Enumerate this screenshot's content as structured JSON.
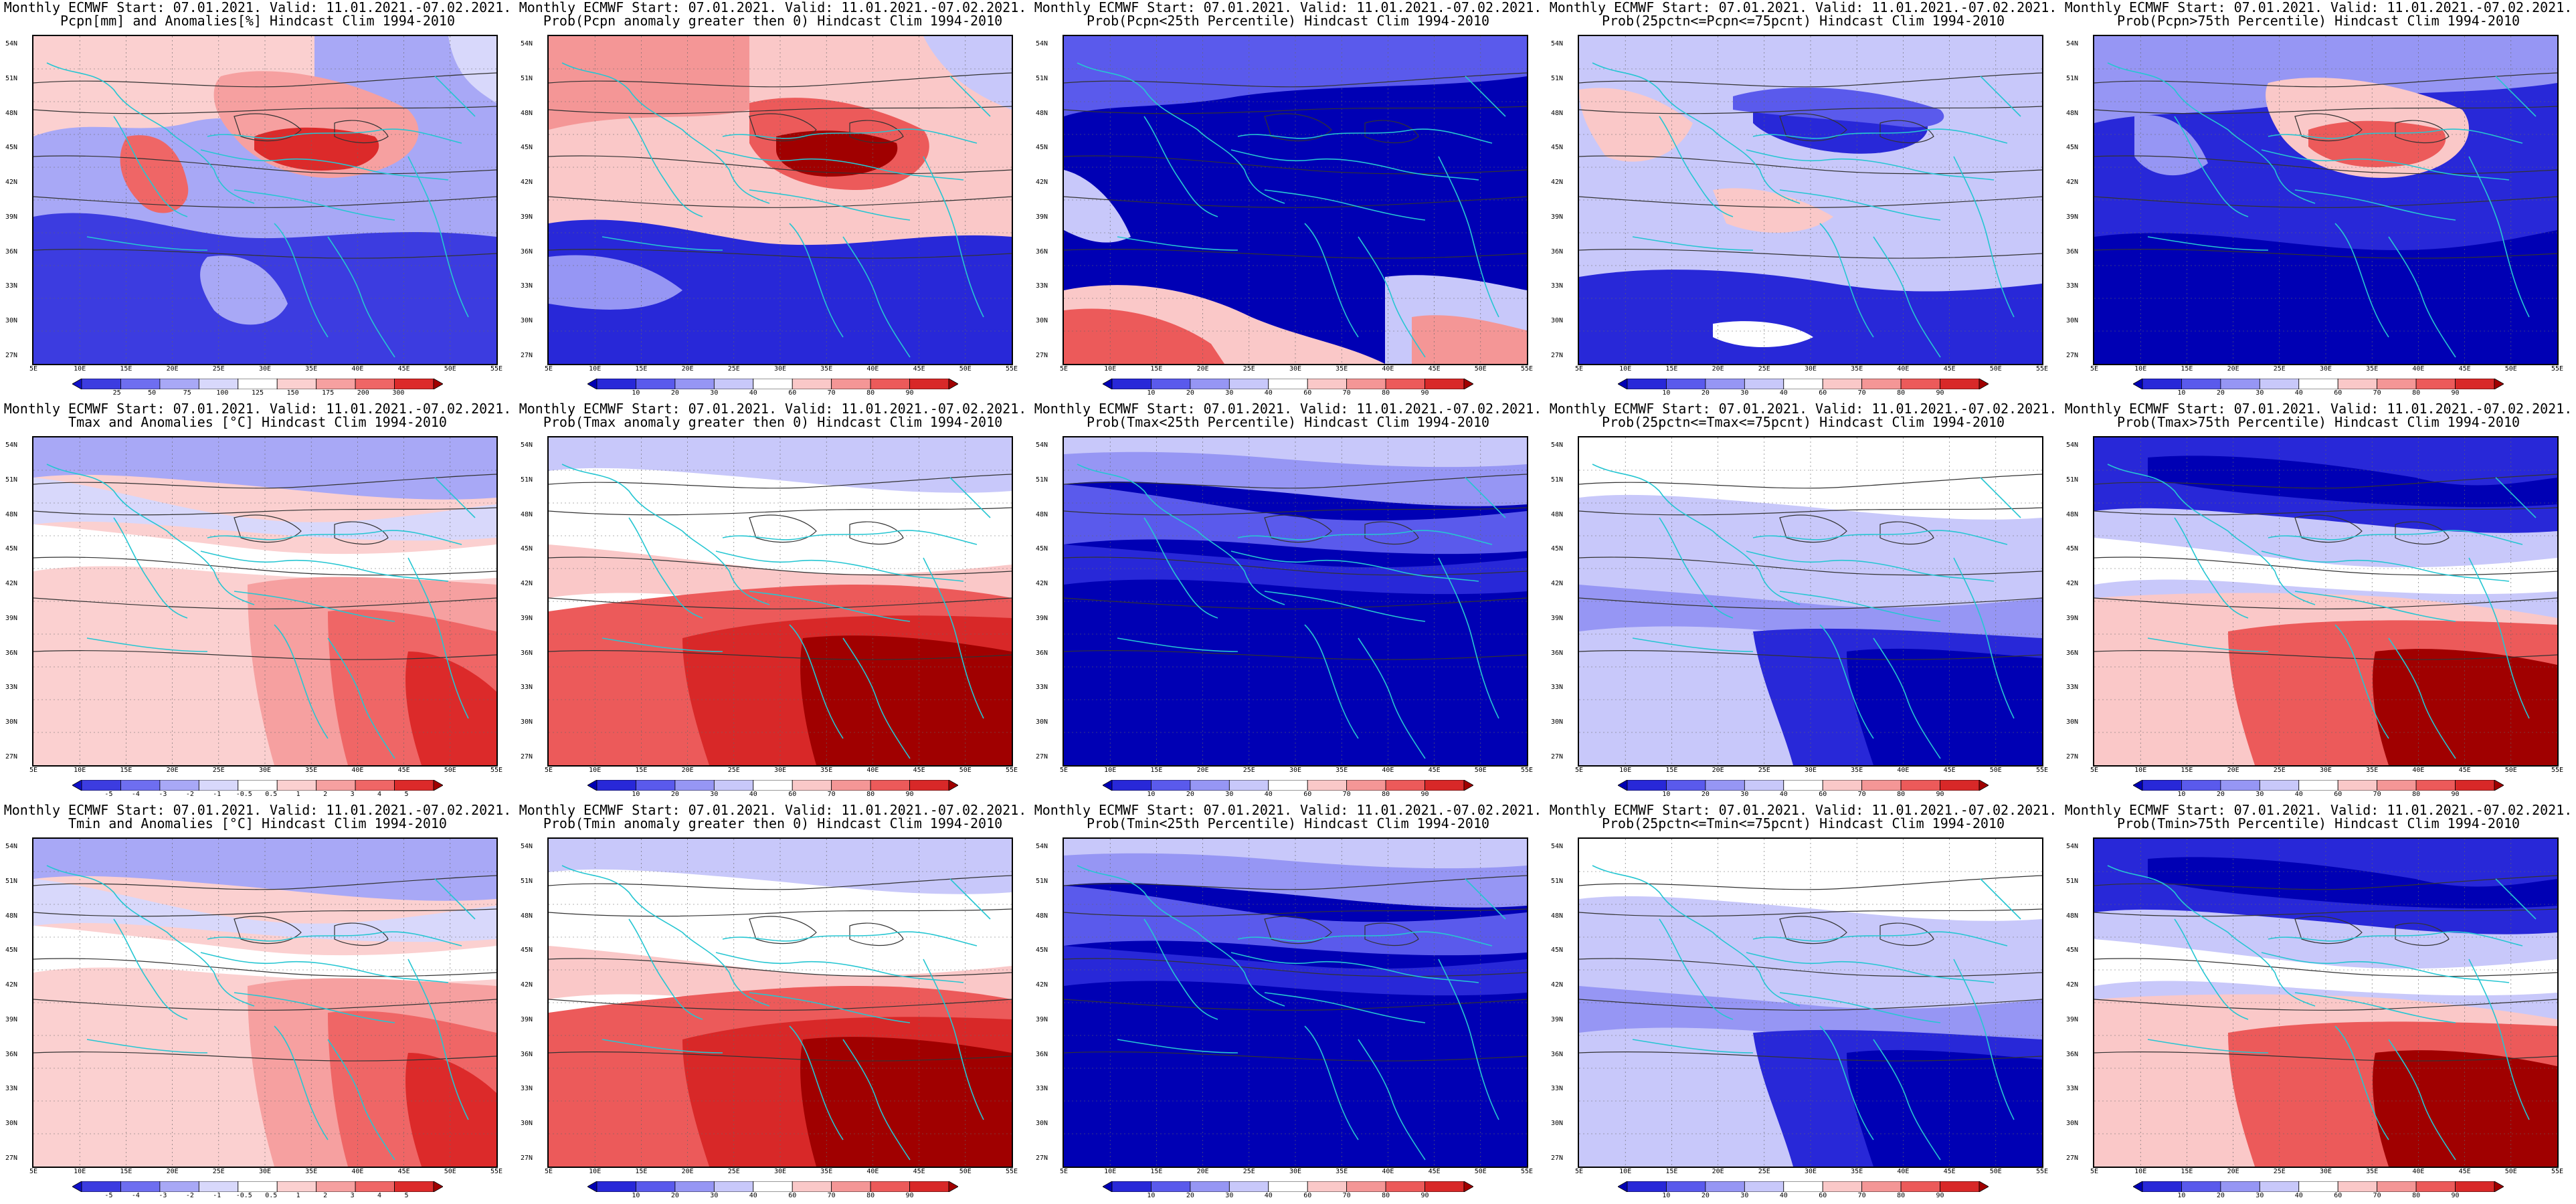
{
  "lat_labels": [
    "54N",
    "51N",
    "48N",
    "45N",
    "42N",
    "39N",
    "36N",
    "33N",
    "30N",
    "27N"
  ],
  "lon_labels": [
    "5E",
    "10E",
    "15E",
    "20E",
    "25E",
    "30E",
    "35E",
    "40E",
    "45E",
    "50E",
    "55E"
  ],
  "colors": {
    "anomaly_scale": [
      "#1010c8",
      "#3c3ce0",
      "#6e6ef0",
      "#a8a8f6",
      "#d8d8fb",
      "#ffffff",
      "#fbd0d0",
      "#f6a0a0",
      "#ef6666",
      "#dc2a2a",
      "#a00000"
    ],
    "prob_scale": [
      "#0000b4",
      "#2828d8",
      "#5a5aec",
      "#9696f4",
      "#c8c8fa",
      "#ffffff",
      "#fac8c8",
      "#f49696",
      "#ec5a5a",
      "#d82828",
      "#a00000"
    ],
    "coast": "#26c6d2",
    "contour": "#333333"
  },
  "panels": [
    {
      "line1": "Monthly ECMWF Start: 07.01.2021. Valid: 11.01.2021.-07.02.2021.",
      "line2": "Pcpn[mm] and Anomalies[%] Hindcast Clim 1994-2010",
      "scale": "anomaly",
      "ticks": [
        "25",
        "50",
        "75",
        "100",
        "125",
        "150",
        "175",
        "200",
        "300"
      ],
      "pattern": "pcpn_anom"
    },
    {
      "line1": "Monthly ECMWF Start: 07.01.2021. Valid: 11.01.2021.-07.02.2021.",
      "line2": "Prob(Pcpn anomaly greater then 0) Hindcast Clim 1994-2010",
      "scale": "prob",
      "ticks": [
        "10",
        "20",
        "30",
        "40",
        "60",
        "70",
        "80",
        "90"
      ],
      "pattern": "pcpn_pos"
    },
    {
      "line1": "Monthly ECMWF Start: 07.01.2021. Valid: 11.01.2021.-07.02.2021.",
      "line2": "Prob(Pcpn<25th Percentile) Hindcast Clim 1994-2010",
      "scale": "prob",
      "ticks": [
        "10",
        "20",
        "30",
        "40",
        "60",
        "70",
        "80",
        "90"
      ],
      "pattern": "pcpn_low"
    },
    {
      "line1": "Monthly ECMWF Start: 07.01.2021. Valid: 11.01.2021.-07.02.2021.",
      "line2": "Prob(25pctn<=Pcpn<=75pcnt) Hindcast Clim 1994-2010",
      "scale": "prob",
      "ticks": [
        "10",
        "20",
        "30",
        "40",
        "60",
        "70",
        "80",
        "90"
      ],
      "pattern": "pcpn_mid"
    },
    {
      "line1": "Monthly ECMWF Start: 07.01.2021. Valid: 11.01.2021.-07.02.2021.",
      "line2": "Prob(Pcpn>75th Percentile) Hindcast Clim 1994-2010",
      "scale": "prob",
      "ticks": [
        "10",
        "20",
        "30",
        "40",
        "60",
        "70",
        "80",
        "90"
      ],
      "pattern": "pcpn_high"
    },
    {
      "line1": "Monthly ECMWF Start: 07.01.2021. Valid: 11.01.2021.-07.02.2021.",
      "line2": "Tmax and Anomalies [°C] Hindcast Clim 1994-2010",
      "scale": "anomaly",
      "ticks": [
        "-5",
        "-4",
        "-3",
        "-2",
        "-1",
        "-0.5",
        "0.5",
        "1",
        "2",
        "3",
        "4",
        "5"
      ],
      "pattern": "t_anom"
    },
    {
      "line1": "Monthly ECMWF Start: 07.01.2021. Valid: 11.01.2021.-07.02.2021.",
      "line2": "Prob(Tmax anomaly greater then 0) Hindcast Clim 1994-2010",
      "scale": "prob",
      "ticks": [
        "10",
        "20",
        "30",
        "40",
        "60",
        "70",
        "80",
        "90"
      ],
      "pattern": "t_pos"
    },
    {
      "line1": "Monthly ECMWF Start: 07.01.2021. Valid: 11.01.2021.-07.02.2021.",
      "line2": "Prob(Tmax<25th Percentile) Hindcast Clim 1994-2010",
      "scale": "prob",
      "ticks": [
        "10",
        "20",
        "30",
        "40",
        "60",
        "70",
        "80",
        "90"
      ],
      "pattern": "t_low"
    },
    {
      "line1": "Monthly ECMWF Start: 07.01.2021. Valid: 11.01.2021.-07.02.2021.",
      "line2": "Prob(25pctn<=Tmax<=75pcnt) Hindcast Clim 1994-2010",
      "scale": "prob",
      "ticks": [
        "10",
        "20",
        "30",
        "40",
        "60",
        "70",
        "80",
        "90"
      ],
      "pattern": "t_mid"
    },
    {
      "line1": "Monthly ECMWF Start: 07.01.2021. Valid: 11.01.2021.-07.02.2021.",
      "line2": "Prob(Tmax>75th Percentile) Hindcast Clim 1994-2010",
      "scale": "prob",
      "ticks": [
        "10",
        "20",
        "30",
        "40",
        "60",
        "70",
        "80",
        "90"
      ],
      "pattern": "t_high"
    },
    {
      "line1": "Monthly ECMWF Start: 07.01.2021. Valid: 11.01.2021.-07.02.2021.",
      "line2": "Tmin and Anomalies [°C] Hindcast Clim 1994-2010",
      "scale": "anomaly",
      "ticks": [
        "-5",
        "-4",
        "-3",
        "-2",
        "-1",
        "-0.5",
        "0.5",
        "1",
        "2",
        "3",
        "4",
        "5"
      ],
      "pattern": "t_anom"
    },
    {
      "line1": "Monthly ECMWF Start: 07.01.2021. Valid: 11.01.2021.-07.02.2021.",
      "line2": "Prob(Tmin anomaly greater then 0) Hindcast Clim 1994-2010",
      "scale": "prob",
      "ticks": [
        "10",
        "20",
        "30",
        "40",
        "60",
        "70",
        "80",
        "90"
      ],
      "pattern": "t_pos"
    },
    {
      "line1": "Monthly ECMWF Start: 07.01.2021. Valid: 11.01.2021.-07.02.2021.",
      "line2": "Prob(Tmin<25th Percentile) Hindcast Clim 1994-2010",
      "scale": "prob",
      "ticks": [
        "10",
        "20",
        "30",
        "40",
        "60",
        "70",
        "80",
        "90"
      ],
      "pattern": "t_low"
    },
    {
      "line1": "Monthly ECMWF Start: 07.01.2021. Valid: 11.01.2021.-07.02.2021.",
      "line2": "Prob(25pctn<=Tmin<=75pcnt) Hindcast Clim 1994-2010",
      "scale": "prob",
      "ticks": [
        "10",
        "20",
        "30",
        "40",
        "60",
        "70",
        "80",
        "90"
      ],
      "pattern": "t_mid"
    },
    {
      "line1": "Monthly ECMWF Start: 07.01.2021. Valid: 11.01.2021.-07.02.2021.",
      "line2": "Prob(Tmin>75th Percentile) Hindcast Clim 1994-2010",
      "scale": "prob",
      "ticks": [
        "10",
        "20",
        "30",
        "40",
        "60",
        "70",
        "80",
        "90"
      ],
      "pattern": "t_high"
    }
  ]
}
